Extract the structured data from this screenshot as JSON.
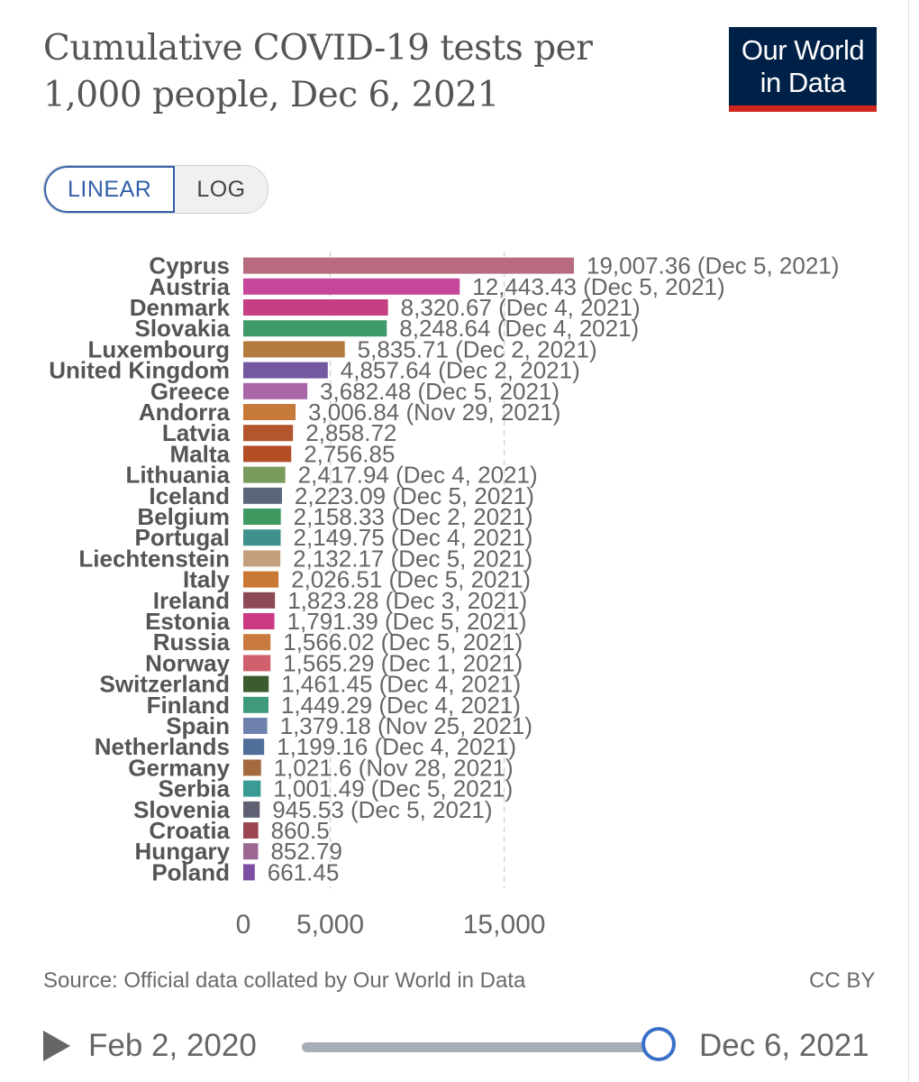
{
  "header": {
    "title": "Cumulative COVID-19 tests per 1,000 people, Dec 6, 2021",
    "logo_line1": "Our World",
    "logo_line2": "in Data"
  },
  "scale_toggle": {
    "linear": "LINEAR",
    "log": "LOG",
    "selected": "LINEAR"
  },
  "footer": {
    "source": "Source: Official data collated by Our World in Data",
    "license": "CC BY"
  },
  "timeline": {
    "start": "Feb 2, 2020",
    "end": "Dec 6, 2021",
    "position": 1.0
  },
  "chart_data": {
    "type": "bar",
    "orientation": "horizontal",
    "xlim": [
      0,
      19007.36
    ],
    "x_ticks": [
      0,
      5000,
      15000
    ],
    "x_tick_labels": [
      "0",
      "5,000",
      "15,000"
    ],
    "grid": "vertical-dashed",
    "rows": [
      {
        "name": "Cyprus",
        "value": 19007.36,
        "label": "19,007.36 (Dec 5, 2021)",
        "color": "#b86b7e"
      },
      {
        "name": "Austria",
        "value": 12443.43,
        "label": "12,443.43 (Dec 5, 2021)",
        "color": "#c5479c"
      },
      {
        "name": "Denmark",
        "value": 8320.67,
        "label": "8,320.67 (Dec 4, 2021)",
        "color": "#c53f82"
      },
      {
        "name": "Slovakia",
        "value": 8248.64,
        "label": "8,248.64 (Dec 4, 2021)",
        "color": "#3e9a69"
      },
      {
        "name": "Luxembourg",
        "value": 5835.71,
        "label": "5,835.71 (Dec 2, 2021)",
        "color": "#b47b3e"
      },
      {
        "name": "United Kingdom",
        "value": 4857.64,
        "label": "4,857.64 (Dec 2, 2021)",
        "color": "#7559a0"
      },
      {
        "name": "Greece",
        "value": 3682.48,
        "label": "3,682.48 (Dec 5, 2021)",
        "color": "#a967a9"
      },
      {
        "name": "Andorra",
        "value": 3006.84,
        "label": "3,006.84 (Nov 29, 2021)",
        "color": "#c57a3b"
      },
      {
        "name": "Latvia",
        "value": 2858.72,
        "label": "2,858.72",
        "color": "#b3562d"
      },
      {
        "name": "Malta",
        "value": 2756.85,
        "label": "2,756.85",
        "color": "#b24d26"
      },
      {
        "name": "Lithuania",
        "value": 2417.94,
        "label": "2,417.94 (Dec 4, 2021)",
        "color": "#789b5c"
      },
      {
        "name": "Iceland",
        "value": 2223.09,
        "label": "2,223.09 (Dec 5, 2021)",
        "color": "#58657a"
      },
      {
        "name": "Belgium",
        "value": 2158.33,
        "label": "2,158.33 (Dec 2, 2021)",
        "color": "#3f9a60"
      },
      {
        "name": "Portugal",
        "value": 2149.75,
        "label": "2,149.75 (Dec 4, 2021)",
        "color": "#3f918d"
      },
      {
        "name": "Liechtenstein",
        "value": 2132.17,
        "label": "2,132.17 (Dec 5, 2021)",
        "color": "#c5a07c"
      },
      {
        "name": "Italy",
        "value": 2026.51,
        "label": "2,026.51 (Dec 5, 2021)",
        "color": "#c97836"
      },
      {
        "name": "Ireland",
        "value": 1823.28,
        "label": "1,823.28 (Dec 3, 2021)",
        "color": "#8e4957"
      },
      {
        "name": "Estonia",
        "value": 1791.39,
        "label": "1,791.39 (Dec 5, 2021)",
        "color": "#cc3a84"
      },
      {
        "name": "Russia",
        "value": 1566.02,
        "label": "1,566.02 (Dec 5, 2021)",
        "color": "#c97a3f"
      },
      {
        "name": "Norway",
        "value": 1565.29,
        "label": "1,565.29 (Dec 1, 2021)",
        "color": "#d0606e"
      },
      {
        "name": "Switzerland",
        "value": 1461.45,
        "label": "1,461.45 (Dec 4, 2021)",
        "color": "#3b5c2f"
      },
      {
        "name": "Finland",
        "value": 1449.29,
        "label": "1,449.29 (Dec 4, 2021)",
        "color": "#3f9a7a"
      },
      {
        "name": "Spain",
        "value": 1379.18,
        "label": "1,379.18 (Nov 25, 2021)",
        "color": "#6e81ad"
      },
      {
        "name": "Netherlands",
        "value": 1199.16,
        "label": "1,199.16 (Dec 4, 2021)",
        "color": "#4f6f9a"
      },
      {
        "name": "Germany",
        "value": 1021.6,
        "label": "1,021.6 (Nov 28, 2021)",
        "color": "#a4693d"
      },
      {
        "name": "Serbia",
        "value": 1001.49,
        "label": "1,001.49 (Dec 5, 2021)",
        "color": "#3a9a95"
      },
      {
        "name": "Slovenia",
        "value": 945.53,
        "label": "945.53 (Dec 5, 2021)",
        "color": "#5f6172"
      },
      {
        "name": "Croatia",
        "value": 860.5,
        "label": "860.5",
        "color": "#9a4550"
      },
      {
        "name": "Hungary",
        "value": 852.79,
        "label": "852.79",
        "color": "#9b6691"
      },
      {
        "name": "Poland",
        "value": 661.45,
        "label": "661.45",
        "color": "#7d4fa3"
      }
    ]
  }
}
